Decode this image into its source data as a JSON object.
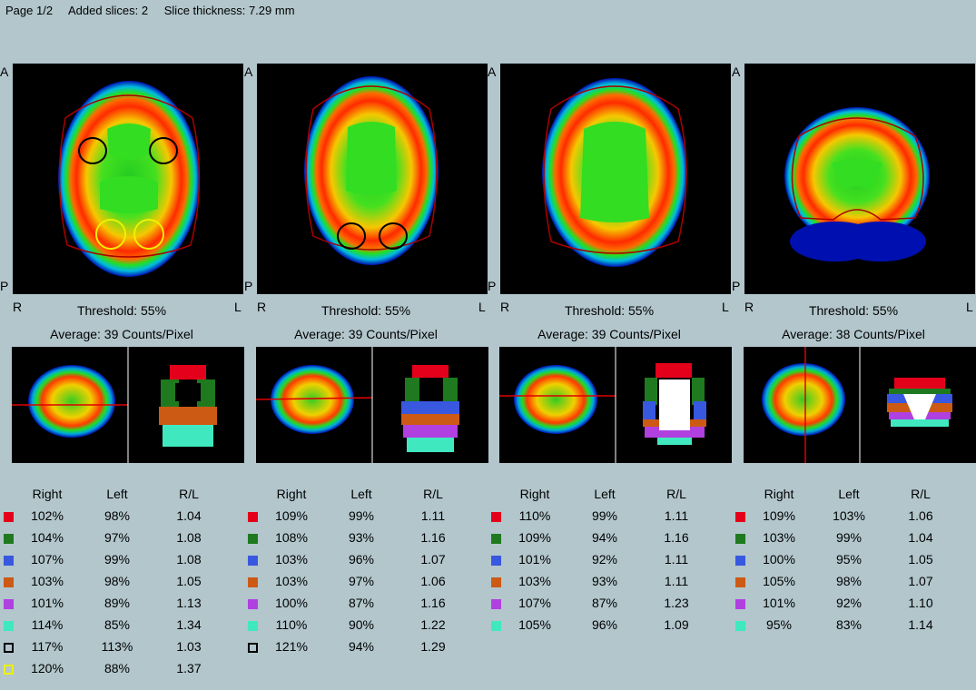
{
  "header": {
    "page": "Page 1/2",
    "added_slices": "Added slices: 2",
    "slice_thickness": "Slice thickness: 7.29 mm"
  },
  "orientation": {
    "anterior": "A",
    "posterior": "P",
    "right": "R",
    "left": "L"
  },
  "table_headers": {
    "right": "Right",
    "left": "Left",
    "ratio": "R/L"
  },
  "panels": [
    {
      "threshold": "Threshold: 55%",
      "average": "Average: 39 Counts/Pixel",
      "rows": [
        {
          "color": "#e4001a",
          "outline": false,
          "right": "102%",
          "left": "98%",
          "ratio": "1.04"
        },
        {
          "color": "#1f7a1f",
          "outline": false,
          "right": "104%",
          "left": "97%",
          "ratio": "1.08"
        },
        {
          "color": "#3858e0",
          "outline": false,
          "right": "107%",
          "left": "99%",
          "ratio": "1.08"
        },
        {
          "color": "#cc5a14",
          "outline": false,
          "right": "103%",
          "left": "98%",
          "ratio": "1.05"
        },
        {
          "color": "#b040e0",
          "outline": false,
          "right": "101%",
          "left": "89%",
          "ratio": "1.13"
        },
        {
          "color": "#40e8c0",
          "outline": false,
          "right": "114%",
          "left": "85%",
          "ratio": "1.34"
        },
        {
          "color": "#000000",
          "outline": true,
          "right": "117%",
          "left": "113%",
          "ratio": "1.03"
        },
        {
          "color": "#f0f000",
          "outline": true,
          "right": "120%",
          "left": "88%",
          "ratio": "1.37"
        }
      ]
    },
    {
      "threshold": "Threshold: 55%",
      "average": "Average: 39 Counts/Pixel",
      "rows": [
        {
          "color": "#e4001a",
          "outline": false,
          "right": "109%",
          "left": "99%",
          "ratio": "1.11"
        },
        {
          "color": "#1f7a1f",
          "outline": false,
          "right": "108%",
          "left": "93%",
          "ratio": "1.16"
        },
        {
          "color": "#3858e0",
          "outline": false,
          "right": "103%",
          "left": "96%",
          "ratio": "1.07"
        },
        {
          "color": "#cc5a14",
          "outline": false,
          "right": "103%",
          "left": "97%",
          "ratio": "1.06"
        },
        {
          "color": "#b040e0",
          "outline": false,
          "right": "100%",
          "left": "87%",
          "ratio": "1.16"
        },
        {
          "color": "#40e8c0",
          "outline": false,
          "right": "110%",
          "left": "90%",
          "ratio": "1.22"
        },
        {
          "color": "#000000",
          "outline": true,
          "right": "121%",
          "left": "94%",
          "ratio": "1.29"
        }
      ]
    },
    {
      "threshold": "Threshold: 55%",
      "average": "Average: 39 Counts/Pixel",
      "rows": [
        {
          "color": "#e4001a",
          "outline": false,
          "right": "110%",
          "left": "99%",
          "ratio": "1.11"
        },
        {
          "color": "#1f7a1f",
          "outline": false,
          "right": "109%",
          "left": "94%",
          "ratio": "1.16"
        },
        {
          "color": "#3858e0",
          "outline": false,
          "right": "101%",
          "left": "92%",
          "ratio": "1.11"
        },
        {
          "color": "#cc5a14",
          "outline": false,
          "right": "103%",
          "left": "93%",
          "ratio": "1.11"
        },
        {
          "color": "#b040e0",
          "outline": false,
          "right": "107%",
          "left": "87%",
          "ratio": "1.23"
        },
        {
          "color": "#40e8c0",
          "outline": false,
          "right": "105%",
          "left": "96%",
          "ratio": "1.09"
        }
      ]
    },
    {
      "threshold": "Threshold: 55%",
      "average": "Average: 38 Counts/Pixel",
      "rows": [
        {
          "color": "#e4001a",
          "outline": false,
          "right": "109%",
          "left": "103%",
          "ratio": "1.06"
        },
        {
          "color": "#1f7a1f",
          "outline": false,
          "right": "103%",
          "left": "99%",
          "ratio": "1.04"
        },
        {
          "color": "#3858e0",
          "outline": false,
          "right": "100%",
          "left": "95%",
          "ratio": "1.05"
        },
        {
          "color": "#cc5a14",
          "outline": false,
          "right": "105%",
          "left": "98%",
          "ratio": "1.07"
        },
        {
          "color": "#b040e0",
          "outline": false,
          "right": "101%",
          "left": "92%",
          "ratio": "1.10"
        },
        {
          "color": "#40e8c0",
          "outline": false,
          "right": "95%",
          "left": "83%",
          "ratio": "1.14"
        }
      ]
    }
  ]
}
